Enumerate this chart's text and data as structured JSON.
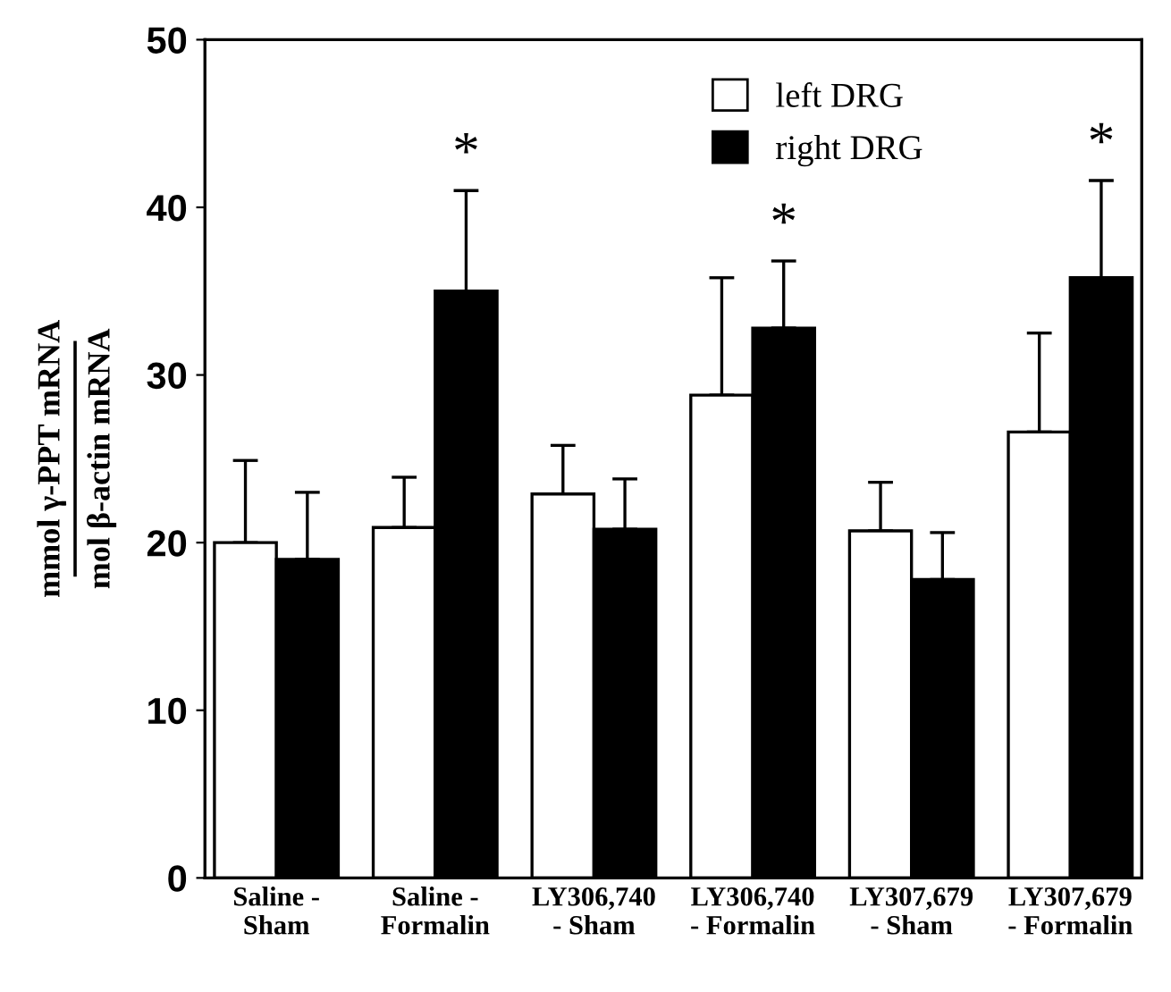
{
  "chart_data": {
    "type": "bar",
    "ylabel": "mmol γ-PPT mRNA\nmol β-actin mRNA",
    "categories": [
      "Saline -\nSham",
      "Saline -\nFormalin",
      "LY306,740\n- Sham",
      "LY306,740\n- Formalin",
      "LY307,679\n- Sham",
      "LY307,679\n- Formalin"
    ],
    "series": [
      {
        "name": "left DRG",
        "color": "#ffffff",
        "values": [
          20.0,
          20.9,
          22.9,
          28.8,
          20.7,
          26.6
        ],
        "errors": [
          [
            20.0,
            24.9
          ],
          [
            20.9,
            23.9
          ],
          [
            22.9,
            25.8
          ],
          [
            28.8,
            35.8
          ],
          [
            20.7,
            23.6
          ],
          [
            26.6,
            32.5
          ]
        ]
      },
      {
        "name": "right DRG",
        "color": "#000000",
        "values": [
          19.0,
          35.0,
          20.8,
          32.8,
          17.8,
          35.8
        ],
        "errors": [
          [
            19.0,
            23.0
          ],
          [
            35.0,
            41.0
          ],
          [
            20.8,
            23.8
          ],
          [
            32.8,
            36.8
          ],
          [
            17.8,
            20.6
          ],
          [
            35.8,
            41.6
          ]
        ]
      }
    ],
    "annotations": [
      "*",
      "*",
      "*"
    ],
    "ylim": [
      0,
      50
    ],
    "yticks": [
      0,
      10,
      20,
      30,
      40,
      50
    ],
    "grid": false,
    "legend": "top right"
  }
}
